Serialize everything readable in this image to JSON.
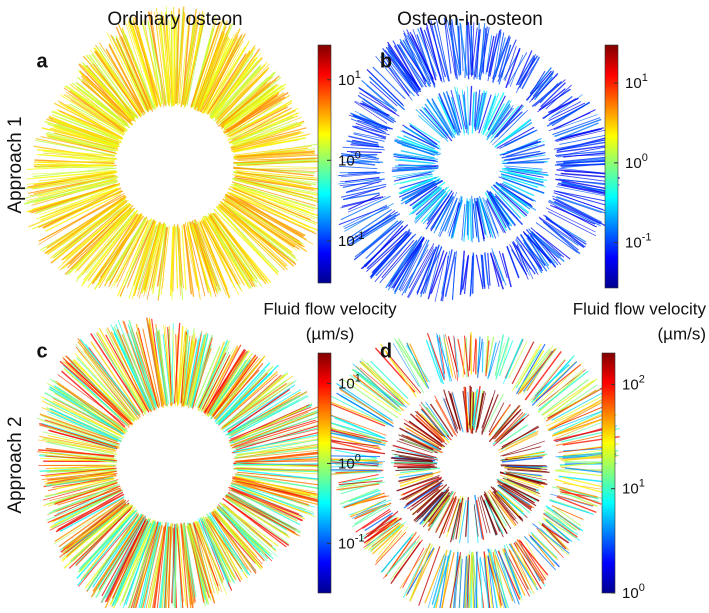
{
  "column_titles": [
    "Ordinary osteon",
    "Osteon-in-osteon"
  ],
  "row_labels": [
    "Approach 1",
    "Approach 2"
  ],
  "panels": [
    {
      "label": "a",
      "colorbar": {
        "scale": "log",
        "lim": [
          0.03,
          27
        ],
        "ticks": [
          {
            "value": 0.1,
            "base": "10",
            "exponent": "-1"
          },
          {
            "value": 1,
            "base": "10",
            "exponent": "0"
          },
          {
            "value": 10,
            "base": "10",
            "exponent": "1"
          }
        ]
      }
    },
    {
      "label": "b",
      "colorbar": {
        "scale": "log",
        "lim": [
          0.027,
          30
        ],
        "ticks": [
          {
            "value": 0.1,
            "base": "10",
            "exponent": "-1"
          },
          {
            "value": 1,
            "base": "10",
            "exponent": "0"
          },
          {
            "value": 10,
            "base": "10",
            "exponent": "1"
          }
        ]
      }
    },
    {
      "label": "c",
      "colorbar": {
        "title": [
          "Fluid flow velocity",
          "(µm/s)"
        ],
        "scale": "log",
        "lim": [
          0.024,
          24
        ],
        "ticks": [
          {
            "value": 0.1,
            "base": "10",
            "exponent": "-1"
          },
          {
            "value": 1,
            "base": "10",
            "exponent": "0"
          },
          {
            "value": 10,
            "base": "10",
            "exponent": "1"
          }
        ]
      }
    },
    {
      "label": "d",
      "colorbar": {
        "title": [
          "Fluid flow velocity",
          "(µm/s)"
        ],
        "scale": "log",
        "lim": [
          1,
          200
        ],
        "ticks": [
          {
            "value": 1,
            "base": "10",
            "exponent": "0"
          },
          {
            "value": 10,
            "base": "10",
            "exponent": "1"
          },
          {
            "value": 100,
            "base": "10",
            "exponent": "2"
          }
        ]
      }
    }
  ]
}
